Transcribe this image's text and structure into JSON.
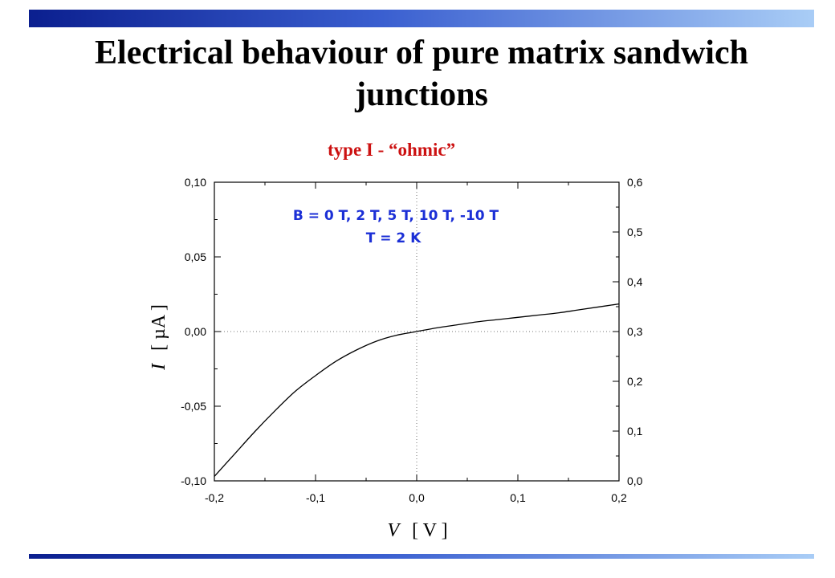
{
  "slide": {
    "title_line1": "Electrical behaviour of pure matrix sandwich",
    "title_line2": "junctions",
    "subtitle": "type I - “ohmic”",
    "colors": {
      "header_bar_dark": "#0b1f8f",
      "header_bar_light": "#a9cdf6",
      "subtitle": "#cc1111",
      "annotation": "#1b2fd6"
    }
  },
  "chart_data": {
    "type": "line",
    "xlabel_symbol": "V",
    "xlabel_unit": "[ V ]",
    "ylabel_symbol": "I",
    "ylabel_unit": "[ µA ]",
    "xlim": [
      -0.2,
      0.2
    ],
    "ylim": [
      -0.1,
      0.1
    ],
    "y2lim": [
      0.0,
      0.6
    ],
    "x_ticks": [
      "-0,2",
      "-0,1",
      "0,0",
      "0,1",
      "0,2"
    ],
    "y_ticks": [
      "-0,10",
      "-0,05",
      "0,00",
      "0,05",
      "0,10"
    ],
    "y2_ticks": [
      "0,0",
      "0,1",
      "0,2",
      "0,3",
      "0,4",
      "0,5",
      "0,6"
    ],
    "annotation_line1": "B = 0 T, 2 T, 5 T, 10 T, -10 T",
    "annotation_line2": "T = 2 K",
    "zero_lines": true,
    "series": [
      {
        "x": [
          -0.2,
          -0.18,
          -0.16,
          -0.14,
          -0.12,
          -0.1,
          -0.08,
          -0.06,
          -0.04,
          -0.02,
          0.0,
          0.02,
          0.04,
          0.06,
          0.08,
          0.1,
          0.12,
          0.14,
          0.16,
          0.18,
          0.2
        ],
        "y": [
          -0.097,
          -0.082,
          -0.067,
          -0.053,
          -0.04,
          -0.0295,
          -0.02,
          -0.0125,
          -0.0065,
          -0.0025,
          0.0,
          0.0025,
          0.0045,
          0.0065,
          0.008,
          0.0095,
          0.011,
          0.0125,
          0.0145,
          0.0165,
          0.0185
        ]
      }
    ]
  }
}
